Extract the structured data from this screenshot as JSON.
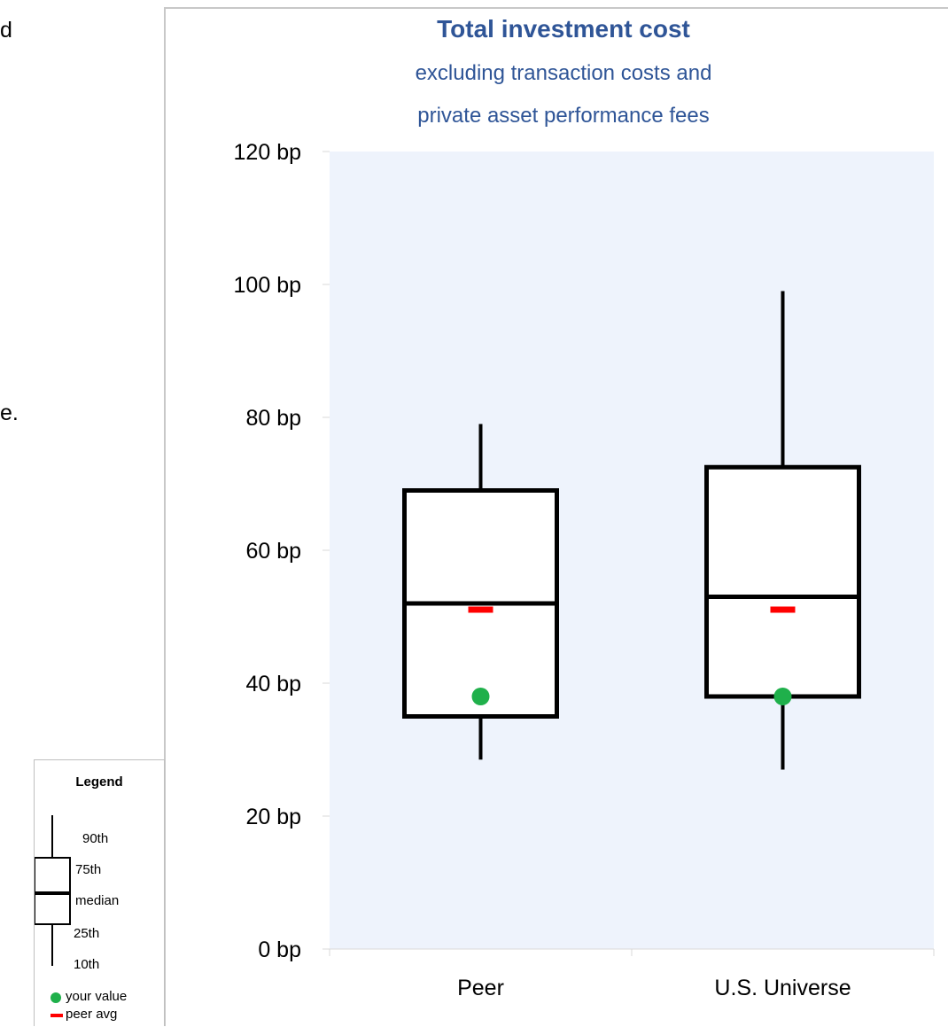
{
  "page": {
    "left_fragments": [
      "d",
      "e."
    ]
  },
  "legend": {
    "title": "Legend",
    "labels": [
      "90th",
      "75th",
      "median",
      "25th",
      "10th"
    ],
    "your_value_label": "your value",
    "peer_avg_label": "peer avg",
    "colors": {
      "your_value": "#1fb04b",
      "peer_avg": "#ff0000"
    }
  },
  "chart_data": {
    "type": "box",
    "title": "Total investment cost",
    "subtitle_lines": [
      "excluding transaction costs and",
      "private asset performance fees"
    ],
    "ylim": [
      0,
      120
    ],
    "yticks": [
      0,
      20,
      40,
      60,
      80,
      100,
      120
    ],
    "ytick_labels": [
      "0 bp",
      "20 bp",
      "40 bp",
      "60 bp",
      "80 bp",
      "100 bp",
      "120 bp"
    ],
    "unit": "bp",
    "categories": [
      "Peer",
      "U.S. Universe"
    ],
    "boxes": [
      {
        "name": "Peer",
        "p10": 28.5,
        "p25": 35,
        "median": 52,
        "p75": 69,
        "p90": 79,
        "your_value": 38,
        "peer_avg": 51
      },
      {
        "name": "U.S. Universe",
        "p10": 27,
        "p25": 38,
        "median": 53,
        "p75": 72.5,
        "p90": 99,
        "your_value": 38,
        "peer_avg": 51
      }
    ],
    "colors": {
      "plot_bg": "#eef3fc",
      "title": "#2f5597",
      "your_value": "#1fb04b",
      "peer_avg": "#ff0000"
    }
  }
}
